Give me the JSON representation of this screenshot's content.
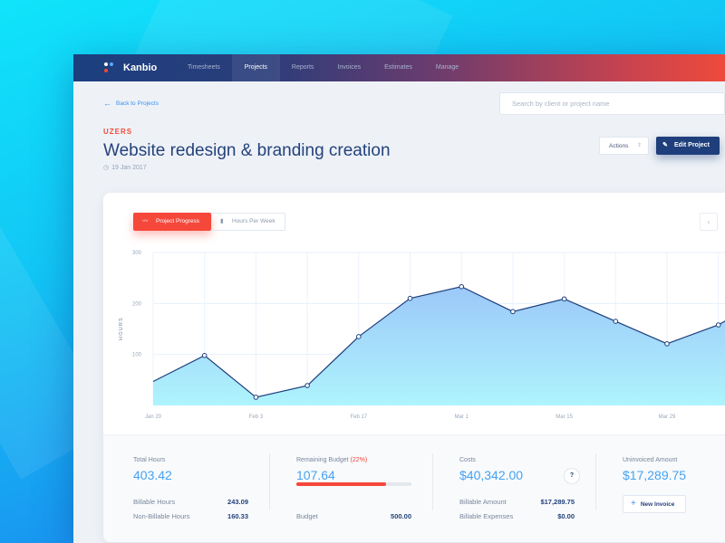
{
  "app": {
    "name": "Kanbio"
  },
  "nav": {
    "items": [
      "Timesheets",
      "Projects",
      "Reports",
      "Invoices",
      "Estimates",
      "Manage"
    ],
    "active": "Projects"
  },
  "back_label": "Back to Projects",
  "search": {
    "placeholder": "Search by client or project name",
    "value": ""
  },
  "project": {
    "client": "UZERS",
    "title": "Website redesign & branding creation",
    "date": "19 Jan 2017"
  },
  "toolbar": {
    "actions_label": "Actions",
    "edit_label": "Edit Project"
  },
  "chart_tabs": {
    "active": "Project Progress",
    "inactive": "Hours Per Week"
  },
  "colors": {
    "accent": "#f5473a",
    "primary": "#1e3f7c",
    "value_blue": "#45a2f2"
  },
  "chart_data": {
    "type": "area",
    "ylabel": "HOURS",
    "ylim": [
      0,
      300
    ],
    "yticks": [
      "100",
      "200",
      "300"
    ],
    "xtick_labels": [
      "Jan 20",
      "Feb 3",
      "Feb 17",
      "Mar 1",
      "Mar 15",
      "Mar 29"
    ],
    "grid": true,
    "values": [
      47,
      98,
      16,
      39,
      135,
      210,
      233,
      184,
      209,
      165,
      121,
      158,
      215
    ]
  },
  "stats": {
    "total_hours": {
      "label": "Total Hours",
      "value": "403.42",
      "rows": [
        {
          "label": "Billable Hours",
          "value": "243.09"
        },
        {
          "label": "Non-Billable Hours",
          "value": "160.33"
        }
      ]
    },
    "budget": {
      "label": "Remaining Budget",
      "pct": "(22%)",
      "value": "107.64",
      "progress": 0.78,
      "row": {
        "label": "Budget",
        "value": "500.00"
      }
    },
    "costs": {
      "label": "Costs",
      "value": "$40,342.00",
      "help": "?",
      "rows": [
        {
          "label": "Billable Amount",
          "value": "$17,289.75"
        },
        {
          "label": "Billable Expenses",
          "value": "$0.00"
        }
      ]
    },
    "uninvoiced": {
      "label": "Uninvoiced Amount",
      "value": "$17,289.75",
      "button": "New Invoice"
    }
  }
}
